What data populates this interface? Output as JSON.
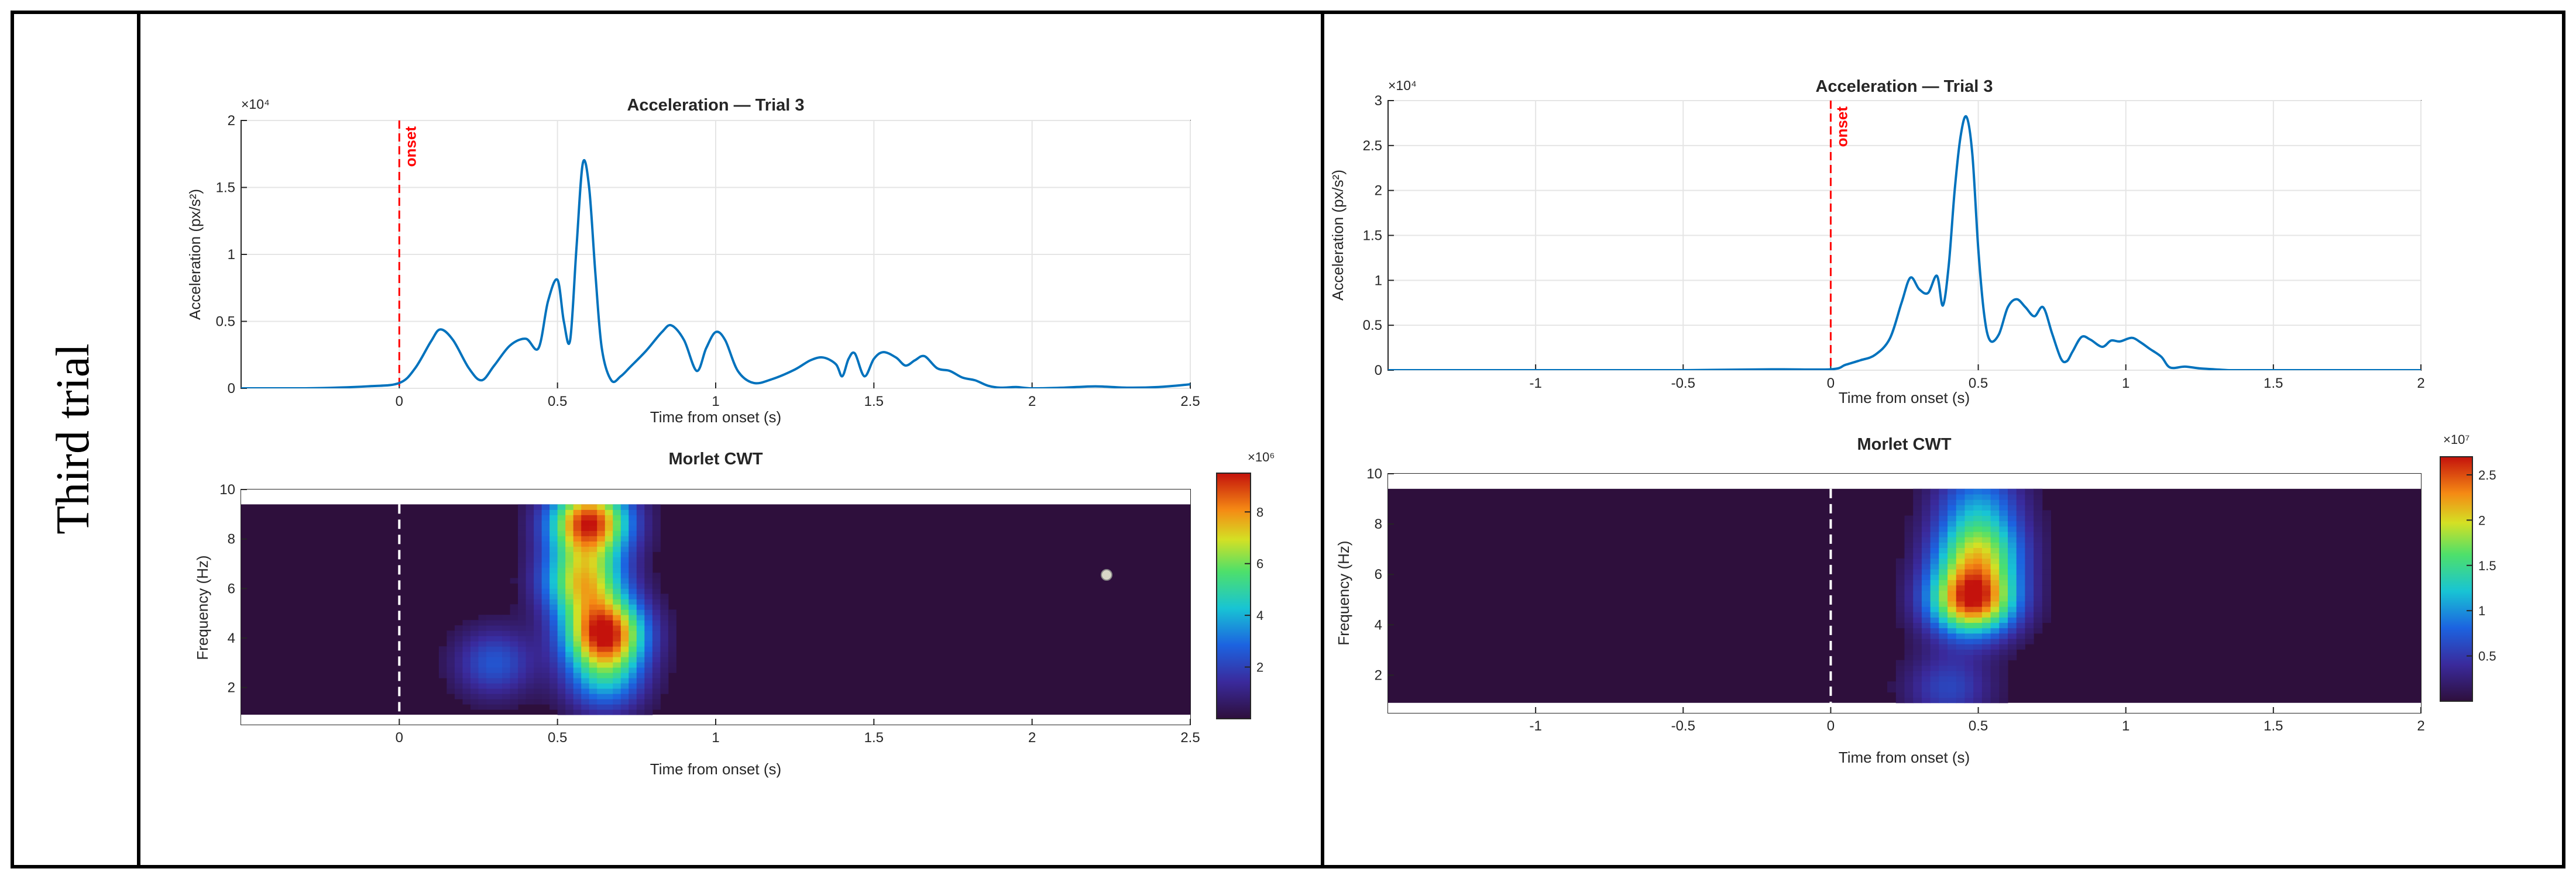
{
  "row_label": "Third trial",
  "colors": {
    "line": "#0072BD",
    "onset_line": "#ff0000",
    "grid": "#e5e5e5",
    "axis": "#262626",
    "cwt_background": "#2e0f3c"
  },
  "panels": [
    {
      "acc_title": "Acceleration — Trial 3",
      "acc_ylabel": "Acceleration (px/s²)",
      "acc_xlabel": "Time from onset (s)",
      "acc_exponent": "×10⁴",
      "onset_label": "onset",
      "cwt_title": "Morlet CWT",
      "cwt_ylabel": "Frequency (Hz)",
      "cwt_xlabel": "Time from onset (s)",
      "colorbar_exponent": "×10⁶",
      "acc_xticks": [
        "0",
        "0.5",
        "1",
        "1.5",
        "2",
        "2.5"
      ],
      "acc_yticks": [
        "0",
        "0.5",
        "1",
        "1.5",
        "2"
      ],
      "cwt_xticks": [
        "0",
        "0.5",
        "1",
        "1.5",
        "2",
        "2.5"
      ],
      "cwt_yticks": [
        "2",
        "4",
        "6",
        "8",
        "10"
      ],
      "colorbar_ticks": [
        "2",
        "4",
        "6",
        "8"
      ]
    },
    {
      "acc_title": "Acceleration — Trial 3",
      "acc_ylabel": "Acceleration (px/s²)",
      "acc_xlabel": "Time from onset (s)",
      "acc_exponent": "×10⁴",
      "onset_label": "onset",
      "cwt_title": "Morlet CWT",
      "cwt_ylabel": "Frequency (Hz)",
      "cwt_xlabel": "Time from onset (s)",
      "colorbar_exponent": "×10⁷",
      "acc_xticks": [
        "-1",
        "-0.5",
        "0",
        "0.5",
        "1",
        "1.5",
        "2"
      ],
      "acc_yticks": [
        "0",
        "0.5",
        "1",
        "1.5",
        "2",
        "2.5",
        "3"
      ],
      "cwt_xticks": [
        "-1",
        "-0.5",
        "0",
        "0.5",
        "1",
        "1.5",
        "2"
      ],
      "cwt_yticks": [
        "2",
        "4",
        "6",
        "8",
        "10"
      ],
      "colorbar_ticks": [
        "0.5",
        "1",
        "1.5",
        "2",
        "2.5"
      ]
    }
  ],
  "chart_data": [
    {
      "type": "line",
      "title": "Acceleration — Trial 3",
      "xlabel": "Time from onset (s)",
      "ylabel": "Acceleration (px/s²)",
      "y_multiplier": "×10⁴",
      "xlim": [
        -0.5,
        2.5
      ],
      "ylim": [
        0,
        20000
      ],
      "grid": true,
      "onset_marker_x": 0,
      "x": [
        -0.5,
        -0.3,
        -0.1,
        0,
        0.05,
        0.1,
        0.13,
        0.17,
        0.22,
        0.26,
        0.3,
        0.35,
        0.4,
        0.44,
        0.47,
        0.5,
        0.52,
        0.54,
        0.56,
        0.58,
        0.6,
        0.62,
        0.64,
        0.67,
        0.7,
        0.73,
        0.78,
        0.83,
        0.86,
        0.9,
        0.94,
        0.97,
        1.0,
        1.03,
        1.07,
        1.12,
        1.18,
        1.25,
        1.3,
        1.34,
        1.38,
        1.4,
        1.42,
        1.44,
        1.47,
        1.5,
        1.53,
        1.57,
        1.6,
        1.63,
        1.66,
        1.7,
        1.74,
        1.78,
        1.82,
        1.86,
        1.9,
        1.95,
        2.0,
        2.1,
        2.2,
        2.3,
        2.4,
        2.5
      ],
      "y": [
        0,
        0,
        150,
        400,
        1500,
        3500,
        4400,
        3600,
        1500,
        600,
        1700,
        3200,
        3700,
        3000,
        6500,
        8100,
        5000,
        3600,
        10500,
        16800,
        15000,
        8500,
        3000,
        600,
        900,
        1600,
        2800,
        4200,
        4700,
        3600,
        1300,
        3000,
        4200,
        3600,
        1300,
        400,
        700,
        1400,
        2100,
        2300,
        1800,
        900,
        2200,
        2600,
        900,
        2200,
        2700,
        2300,
        1700,
        2100,
        2400,
        1500,
        1300,
        800,
        600,
        200,
        50,
        100,
        0,
        50,
        150,
        50,
        100,
        300
      ],
      "colorbar": null
    },
    {
      "type": "heatmap",
      "title": "Morlet CWT",
      "xlabel": "Time from onset (s)",
      "ylabel": "Frequency (Hz)",
      "xlim": [
        -0.5,
        2.5
      ],
      "ylim": [
        0.5,
        10
      ],
      "colorbar_multiplier": "×10⁶",
      "colorbar_range": [
        0,
        9.5
      ],
      "onset_marker_x": 0,
      "hotspots": [
        {
          "time": 0.65,
          "freq": 4.2,
          "value": 9.0
        },
        {
          "time": 0.6,
          "freq": 8.7,
          "value": 9.2
        },
        {
          "time": 0.58,
          "freq": 6.3,
          "value": 6.5
        },
        {
          "time": 0.65,
          "freq": 2.3,
          "value": 3.5
        },
        {
          "time": 0.3,
          "freq": 3.0,
          "value": 2.5
        }
      ]
    },
    {
      "type": "line",
      "title": "Acceleration — Trial 3",
      "xlabel": "Time from onset (s)",
      "ylabel": "Acceleration (px/s²)",
      "y_multiplier": "×10⁴",
      "xlim": [
        -1.5,
        2.0
      ],
      "ylim": [
        0,
        30000
      ],
      "grid": true,
      "onset_marker_x": 0,
      "x": [
        -1.5,
        -1.0,
        -0.5,
        -0.2,
        0,
        0.05,
        0.1,
        0.15,
        0.2,
        0.24,
        0.27,
        0.3,
        0.33,
        0.36,
        0.38,
        0.4,
        0.42,
        0.44,
        0.46,
        0.48,
        0.5,
        0.52,
        0.54,
        0.57,
        0.6,
        0.63,
        0.66,
        0.69,
        0.72,
        0.75,
        0.78,
        0.8,
        0.82,
        0.85,
        0.88,
        0.92,
        0.95,
        0.98,
        1.02,
        1.05,
        1.08,
        1.12,
        1.15,
        1.2,
        1.25,
        1.3,
        1.35,
        1.4,
        1.5,
        1.7,
        1.9,
        2.0
      ],
      "y": [
        0,
        0,
        0,
        100,
        100,
        600,
        1100,
        1700,
        3500,
        7500,
        10300,
        9000,
        8600,
        10500,
        7200,
        11700,
        20000,
        26000,
        28200,
        24000,
        13500,
        6200,
        3300,
        4000,
        7000,
        7900,
        7000,
        6000,
        7000,
        4100,
        1300,
        1000,
        2100,
        3700,
        3400,
        2600,
        3300,
        3200,
        3600,
        3100,
        2400,
        1500,
        300,
        400,
        200,
        100,
        0,
        0,
        0,
        0,
        0,
        0
      ],
      "colorbar": null
    },
    {
      "type": "heatmap",
      "title": "Morlet CWT",
      "xlabel": "Time from onset (s)",
      "ylabel": "Frequency (Hz)",
      "xlim": [
        -1.5,
        2.0
      ],
      "ylim": [
        0.5,
        10
      ],
      "colorbar_multiplier": "×10⁷",
      "colorbar_range": [
        0,
        2.7
      ],
      "onset_marker_x": 0,
      "hotspots": [
        {
          "time": 0.48,
          "freq": 5.0,
          "value": 2.6
        },
        {
          "time": 0.5,
          "freq": 7.0,
          "value": 1.6
        },
        {
          "time": 0.5,
          "freq": 9.0,
          "value": 0.8
        },
        {
          "time": 0.4,
          "freq": 1.5,
          "value": 0.6
        }
      ]
    }
  ]
}
